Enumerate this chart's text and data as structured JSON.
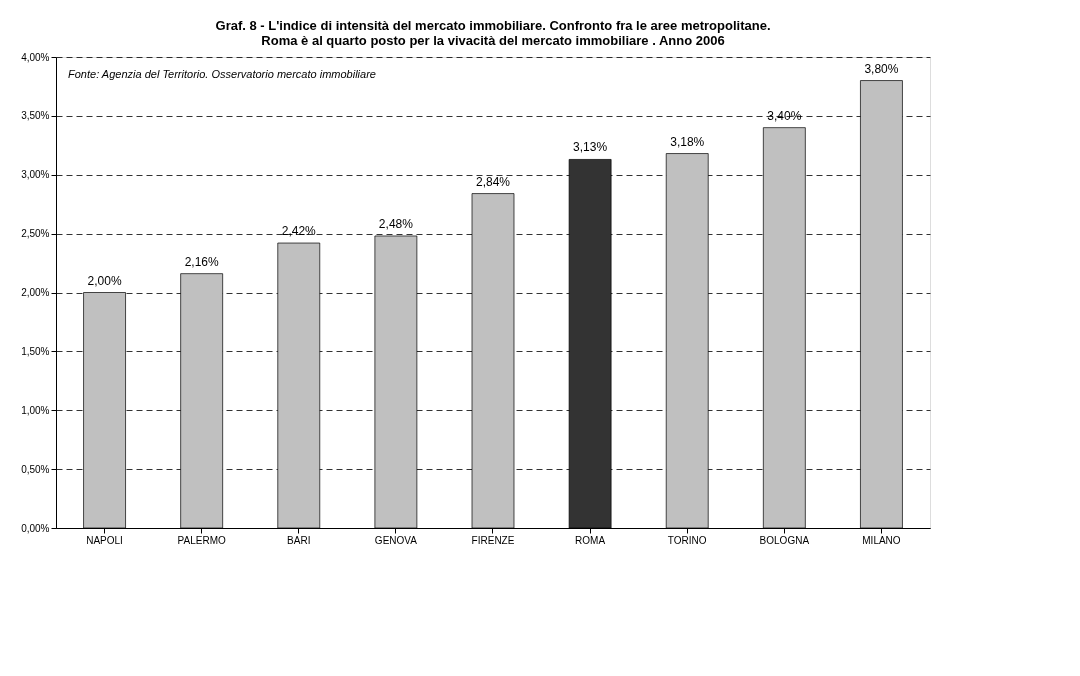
{
  "chart_data": {
    "type": "bar",
    "title": "Graf. 8 - L'indice di intensità del mercato immobiliare. Confronto fra le aree metropolitane. Roma è al quarto posto per la vivacità del mercato immobiliare . Anno 2006",
    "categories": [
      "NAPOLI",
      "PALERMO",
      "BARI",
      "GENOVA",
      "FIRENZE",
      "ROMA",
      "TORINO",
      "BOLOGNA",
      "MILANO"
    ],
    "values": [
      2.0,
      2.16,
      2.42,
      2.48,
      2.84,
      3.13,
      3.18,
      3.4,
      3.8
    ],
    "value_labels": [
      "2,00%",
      "2,16%",
      "2,42%",
      "2,48%",
      "2,84%",
      "3,13%",
      "3,18%",
      "3,40%",
      "3,80%"
    ],
    "colors": [
      "#c0c0c0",
      "#c0c0c0",
      "#c0c0c0",
      "#c0c0c0",
      "#c0c0c0",
      "#333333",
      "#c0c0c0",
      "#c0c0c0",
      "#c0c0c0"
    ],
    "ylim": [
      0,
      4
    ],
    "yticks": [
      {
        "value": 0,
        "label": "0,00%"
      },
      {
        "value": 0.5,
        "label": "0,50%"
      },
      {
        "value": 1,
        "label": "1,00%"
      },
      {
        "value": 1.5,
        "label": "1,50%"
      },
      {
        "value": 2,
        "label": "2,00%"
      },
      {
        "value": 2.5,
        "label": "2,50%"
      },
      {
        "value": 3,
        "label": "3,00%"
      },
      {
        "value": 3.5,
        "label": "3,50%"
      },
      {
        "value": 4,
        "label": "4,00%"
      }
    ],
    "grid": "y",
    "annotations": [
      "Fonte: Agenzia del Territorio. Osservatorio mercato immobiliare"
    ]
  }
}
